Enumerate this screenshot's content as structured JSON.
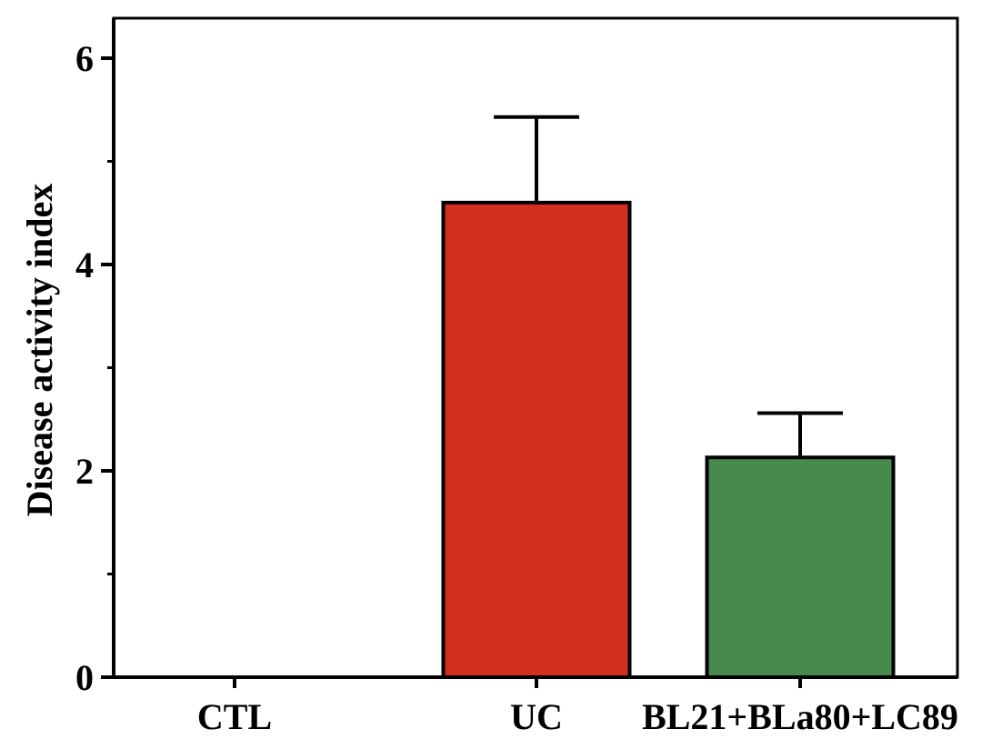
{
  "chart_data": {
    "type": "bar",
    "title": "",
    "xlabel": "",
    "ylabel": "Disease activity index",
    "categories": [
      "CTL",
      "UC",
      "BL21+BLa80+LC89"
    ],
    "values": [
      0.0,
      4.6,
      2.13
    ],
    "errors": [
      0.0,
      0.83,
      0.43
    ],
    "colors": [
      "#ffffff",
      "#d42e20",
      "#468a4d"
    ],
    "ylim": [
      0,
      6.3
    ],
    "yticks": [
      0,
      2,
      4,
      6
    ],
    "ytick_labels": [
      "0",
      "2",
      "4",
      "6"
    ],
    "yminor_ticks": [
      1,
      3,
      5
    ],
    "grid": false,
    "legend": "none"
  }
}
